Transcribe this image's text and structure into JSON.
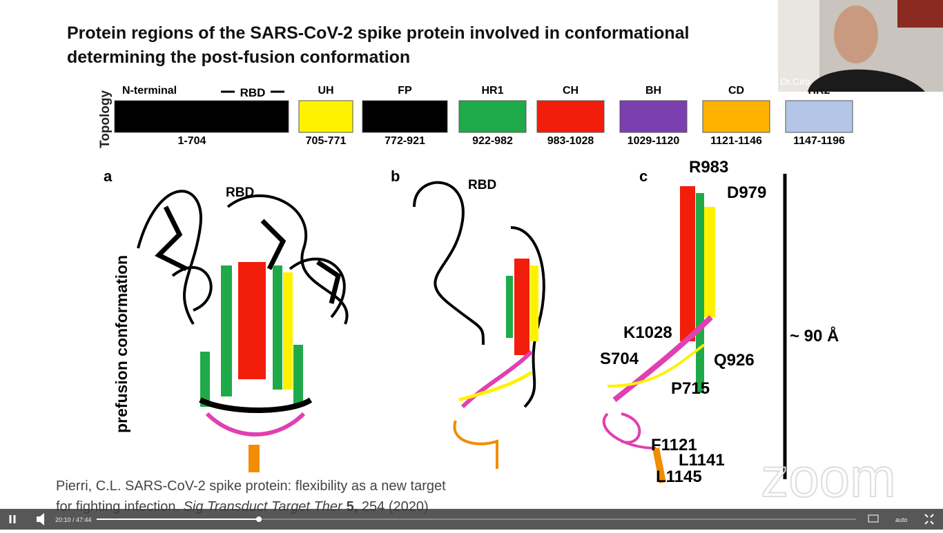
{
  "slide": {
    "title_line1": "Protein regions of the SARS-CoV-2 spike protein involved in conformational",
    "title_line2": "determining the post-fusion conformation",
    "topology_label": "Topology",
    "rbd_label": "RBD",
    "segments": [
      {
        "name": "N-terminal",
        "range": "1-704",
        "color": "#000000"
      },
      {
        "name": "UH",
        "range": "705-771",
        "color": "#fff200"
      },
      {
        "name": "FP",
        "range": "772-921",
        "color": "#000000"
      },
      {
        "name": "HR1",
        "range": "922-982",
        "color": "#1faa4a"
      },
      {
        "name": "CH",
        "range": "983-1028",
        "color": "#f21d0b"
      },
      {
        "name": "BH",
        "range": "1029-1120",
        "color": "#7b3fb0"
      },
      {
        "name": "CD",
        "range": "1121-1146",
        "color": "#ffb300"
      },
      {
        "name": "HR2",
        "range": "1147-1196",
        "color": "#b4c6e7"
      }
    ],
    "panels": [
      {
        "letter": "a",
        "labels": [
          "RBD"
        ]
      },
      {
        "letter": "b",
        "labels": [
          "RBD"
        ]
      },
      {
        "letter": "c",
        "labels": [
          "R983",
          "D979",
          "K1028",
          "S704",
          "Q926",
          "P715",
          "F1121",
          "L1141",
          "L1145"
        ]
      }
    ],
    "side_label": "prefusion conformation",
    "scale_label": "~ 90 Å",
    "citation": {
      "line1": "Pierri, C.L. SARS-CoV-2 spike protein: flexibility as a new target",
      "line2_start": "for fighting infection. ",
      "journal": "Sig Transduct Target Ther",
      "volume": "5,",
      "pages": " 254 (2020)"
    }
  },
  "participant": {
    "name": "Dr.Ciro"
  },
  "watermark": "zoom",
  "player": {
    "time": "20:10 / 47:44",
    "quality": "auto"
  }
}
